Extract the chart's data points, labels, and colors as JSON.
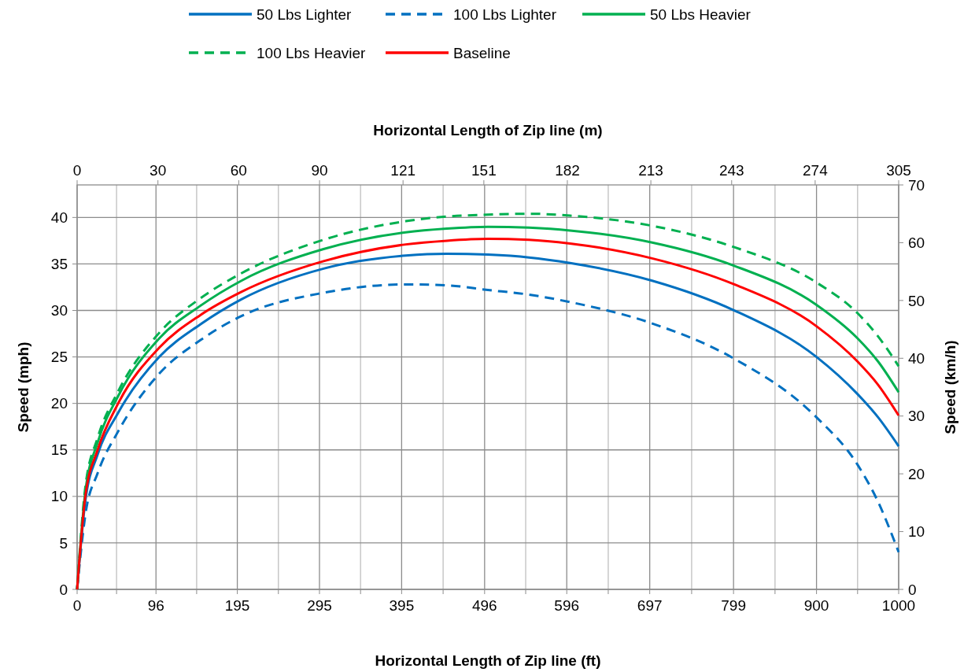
{
  "chart_data": {
    "type": "line",
    "xlabel": "Horizontal Length of Zip line (ft)",
    "x2label": "Horizontal Length of Zip line (m)",
    "ylabel": "Speed (mph)",
    "y2label": "Speed (km/h)",
    "x": [
      0,
      10,
      25,
      50,
      100,
      150,
      200,
      300,
      400,
      450,
      500,
      550,
      600,
      700,
      800,
      900,
      950,
      975,
      1000
    ],
    "series": [
      {
        "name": "50 Lbs Lighter",
        "color": "#0070c0",
        "line_style": "solid",
        "values": [
          0,
          9.5,
          14.5,
          19,
          25,
          28.5,
          31.2,
          34.5,
          35.9,
          36.1,
          36,
          35.7,
          35.1,
          33.2,
          30,
          25,
          21,
          18.5,
          15.4
        ]
      },
      {
        "name": "100 Lbs Lighter",
        "color": "#0070c0",
        "line_style": "dashed",
        "values": [
          0,
          8,
          12.5,
          17,
          23.2,
          26.8,
          29.4,
          31.9,
          32.8,
          32.7,
          32.2,
          31.7,
          30.9,
          28.6,
          24.8,
          18.5,
          13.4,
          9.4,
          4
        ]
      },
      {
        "name": "50 Lbs Heavier",
        "color": "#00b050",
        "line_style": "solid",
        "values": [
          0,
          10.5,
          15.8,
          20.8,
          27,
          30.5,
          33.2,
          36.6,
          38.4,
          38.8,
          39,
          38.9,
          38.6,
          37.3,
          34.8,
          30.6,
          27,
          24.5,
          21.2
        ]
      },
      {
        "name": "100 Lbs Heavier",
        "color": "#00b050",
        "line_style": "dashed",
        "values": [
          0,
          11,
          16.3,
          21.3,
          27.6,
          31.3,
          34,
          37.6,
          39.6,
          40.1,
          40.3,
          40.4,
          40.2,
          39.1,
          36.8,
          33,
          29.7,
          27.2,
          24
        ]
      },
      {
        "name": "Baseline",
        "color": "#ff0000",
        "line_style": "solid",
        "values": [
          0,
          10,
          15,
          20,
          26,
          29.5,
          32,
          35.3,
          37.1,
          37.5,
          37.7,
          37.6,
          37.2,
          35.6,
          32.8,
          28.3,
          24.5,
          22,
          18.7
        ]
      }
    ],
    "xlim": [
      0,
      1000
    ],
    "xticks": [
      0,
      {
        "value": 48,
        "label": null
      },
      96,
      {
        "value": 145.5,
        "label": null
      },
      195,
      {
        "value": 245,
        "label": null
      },
      295,
      {
        "value": 345,
        "label": null
      },
      395,
      {
        "value": 445.5,
        "label": null
      },
      496,
      {
        "value": 546,
        "label": null
      },
      596,
      {
        "value": 646.5,
        "label": null
      },
      697,
      {
        "value": 748,
        "label": null
      },
      799,
      {
        "value": 849.5,
        "label": null
      },
      900,
      {
        "value": 950,
        "label": null
      },
      1000
    ],
    "x2lim": [
      0,
      305
    ],
    "x2ticks": [
      0,
      30,
      60,
      90,
      121,
      151,
      182,
      213,
      243,
      274,
      305
    ],
    "ylim": [
      0,
      43.5
    ],
    "yticks": [
      0,
      5,
      10,
      15,
      20,
      25,
      30,
      35,
      40
    ],
    "y2lim": [
      0,
      70
    ],
    "y2ticks": [
      0,
      10,
      20,
      30,
      40,
      50,
      60,
      70
    ],
    "grid": true,
    "legend": "top"
  }
}
